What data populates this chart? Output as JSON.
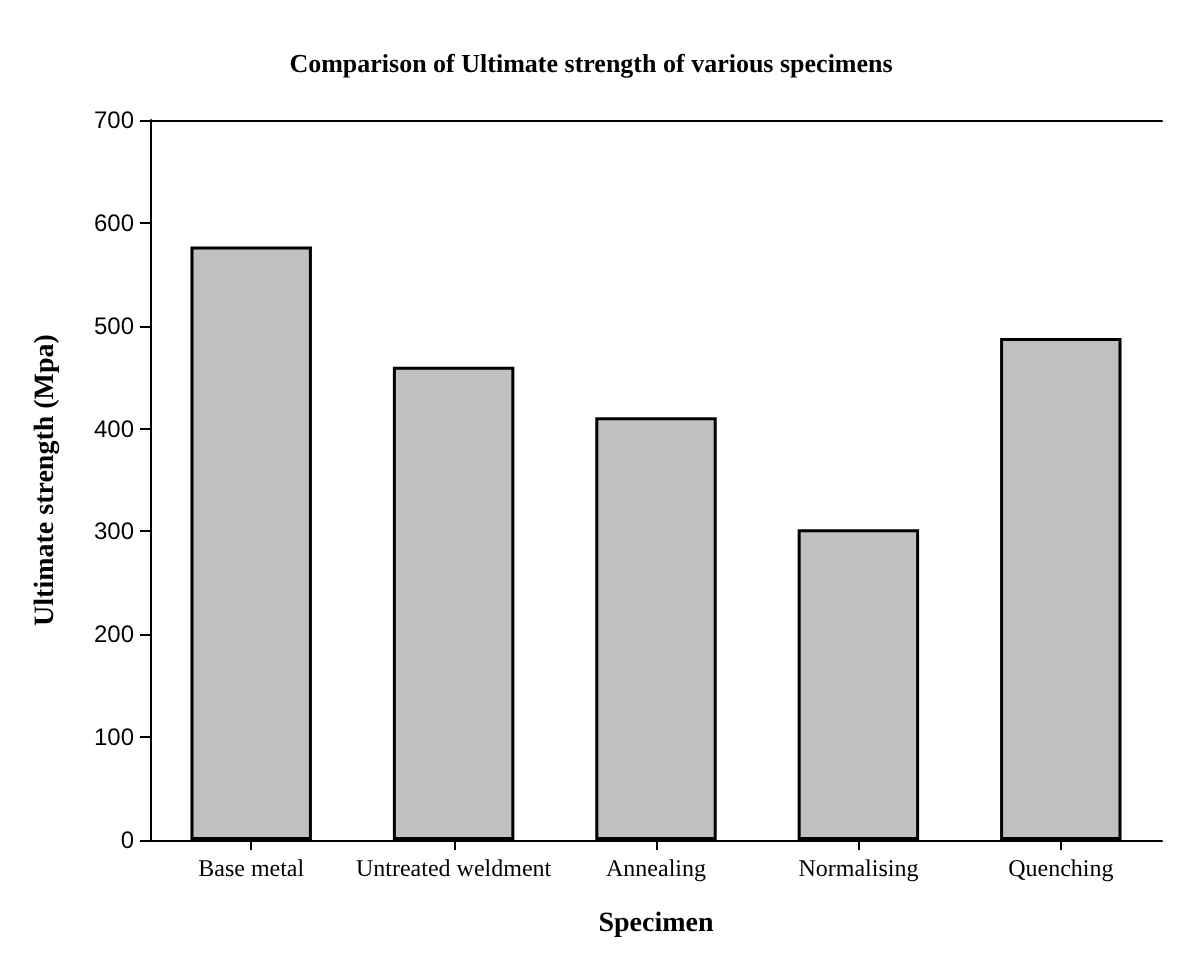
{
  "chart_data": {
    "type": "bar",
    "title": "Comparison of Ultimate strength of various specimens",
    "xlabel": "Specimen",
    "ylabel": "Ultimate strength (Mpa)",
    "categories": [
      "Base metal",
      "Untreated weldment",
      "Annealing",
      "Normalising",
      "Quenching"
    ],
    "values": [
      577,
      460,
      411,
      302,
      488
    ],
    "color": "#c0c0c0",
    "ylim": [
      0,
      700
    ],
    "yticks": [
      0,
      100,
      200,
      300,
      400,
      500,
      600,
      700
    ]
  }
}
